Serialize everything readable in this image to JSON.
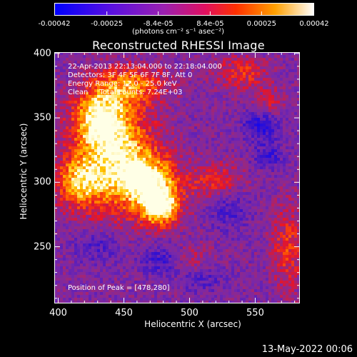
{
  "colorbar": {
    "ticks": [
      "-0.00042",
      "-0.00025",
      "-8.4e-05",
      "8.4e-05",
      "0.00025",
      "0.00042"
    ],
    "tick_values": [
      -0.00042,
      -0.00025,
      -8.4e-05,
      8.4e-05,
      0.00025,
      0.00042
    ],
    "unit": "(photons cm⁻² s⁻¹ asec⁻²)",
    "colors": [
      "#1010ff",
      "#7a20c8",
      "#b03090",
      "#ff1a00",
      "#ffc000",
      "#ffffe0"
    ]
  },
  "chart_data": {
    "type": "heatmap",
    "title": "Reconstructed RHESSI Image",
    "xlabel": "Heliocentric X (arcsec)",
    "ylabel": "Heliocentric Y (arcsec)",
    "xlim": [
      397,
      584
    ],
    "ylim": [
      206,
      401
    ],
    "x_ticks": [
      400,
      450,
      500,
      550
    ],
    "y_ticks": [
      250,
      300,
      350,
      400
    ],
    "x_tick_labels": [
      "400",
      "450",
      "500",
      "550"
    ],
    "y_tick_labels": [
      "250",
      "300",
      "350",
      "400"
    ],
    "peak_position": [
      478,
      280
    ],
    "grid": false
  },
  "annotations": {
    "line1": "22-Apr-2013 22:13:04.000 to 22:18:04.000",
    "line2": "Detectors: 3F 4F 5F 6F 7F 8F, Att 0",
    "line3": "Energy Range: 12.0 - 25.0 keV",
    "line4": "Clean     Total counts: 7.24E+03",
    "peak": "Position of Peak = [478,280]"
  },
  "footer": "13-May-2022 00:06"
}
